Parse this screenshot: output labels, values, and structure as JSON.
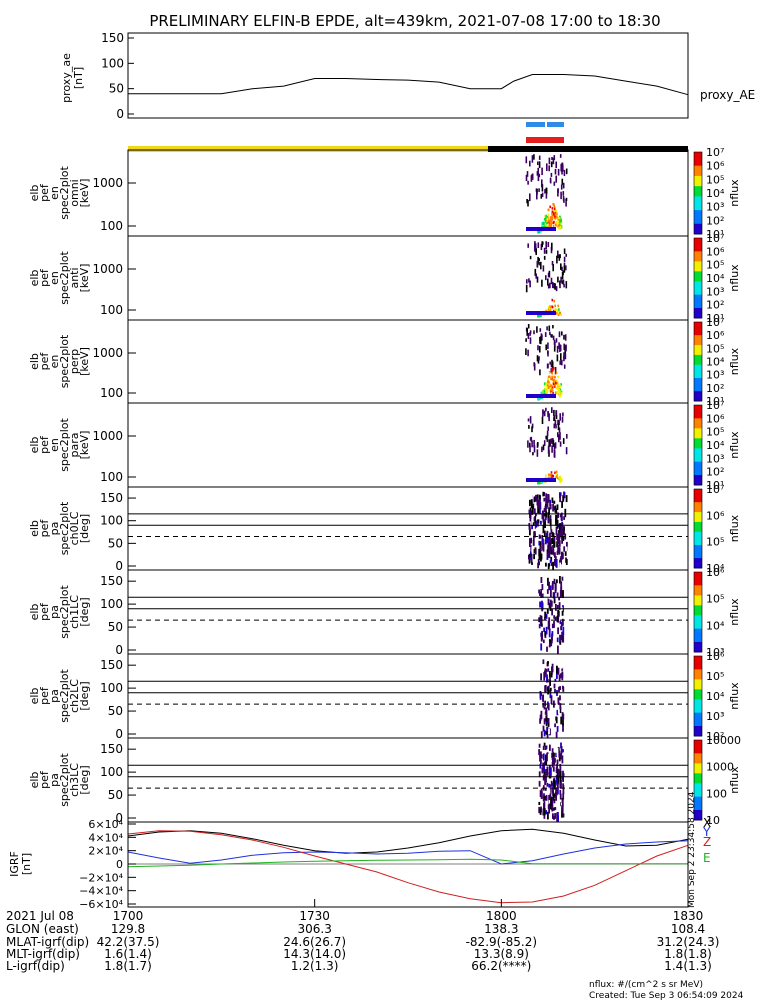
{
  "title": "PRELIMINARY ELFIN-B EPDE, alt=439km, 2021-07-08 17:00 to 18:30",
  "colors": {
    "sunlit_bar": "#f2d619",
    "shadow_bar": "#000000",
    "fast_mode_bar": "#2e8ce6",
    "science_zone_bar": "#e61e1e",
    "bgrf_x": "#000000",
    "bgrf_y": "#1e32dc",
    "bgrf_z": "#d21e1e",
    "bgrf_e": "#1eb41e"
  },
  "chart_data": [
    {
      "id": "proxy_ae",
      "type": "line",
      "ylabel": [
        "proxy_ae",
        "[nT]"
      ],
      "yticks": [
        "0",
        "50",
        "100",
        "150"
      ],
      "ylim": [
        0,
        150
      ],
      "xlim": [
        0,
        90
      ],
      "legend": "proxy_AE",
      "x": [
        0,
        5,
        10,
        15,
        20,
        25,
        30,
        35,
        40,
        45,
        50,
        55,
        60,
        62,
        65,
        70,
        75,
        80,
        85,
        90
      ],
      "y": [
        40,
        40,
        40,
        40,
        50,
        55,
        70,
        70,
        68,
        67,
        63,
        50,
        50,
        65,
        78,
        78,
        75,
        65,
        55,
        38
      ]
    },
    {
      "id": "en_omni",
      "type": "heatmap",
      "ylabel": [
        "elb",
        "pef",
        "en",
        "spec2plot",
        "omni",
        "[keV]"
      ],
      "yticks": [
        "100",
        "1000"
      ],
      "colorbar": {
        "label": "nflux",
        "ticks": [
          "10⁷",
          "10⁶",
          "10⁵",
          "10⁴",
          "10³",
          "10²",
          "10¹"
        ]
      }
    },
    {
      "id": "en_anti",
      "type": "heatmap",
      "ylabel": [
        "elb",
        "pef",
        "en",
        "spec2plot",
        "anti",
        "[keV]"
      ],
      "yticks": [
        "100",
        "1000"
      ],
      "colorbar": {
        "label": "nflux",
        "ticks": [
          "10⁷",
          "10⁶",
          "10⁵",
          "10⁴",
          "10³",
          "10²",
          "10¹"
        ]
      }
    },
    {
      "id": "en_perp",
      "type": "heatmap",
      "ylabel": [
        "elb",
        "pef",
        "en",
        "spec2plot",
        "perp",
        "[keV]"
      ],
      "yticks": [
        "100",
        "1000"
      ],
      "colorbar": {
        "label": "nflux",
        "ticks": [
          "10⁷",
          "10⁶",
          "10⁵",
          "10⁴",
          "10³",
          "10²",
          "10¹"
        ]
      }
    },
    {
      "id": "en_para",
      "type": "heatmap",
      "ylabel": [
        "elb",
        "pef",
        "en",
        "spec2plot",
        "para",
        "[keV]"
      ],
      "yticks": [
        "100",
        "1000"
      ],
      "colorbar": {
        "label": "nflux",
        "ticks": [
          "10⁷",
          "10⁶",
          "10⁵",
          "10⁴",
          "10³",
          "10²",
          "10¹"
        ]
      }
    },
    {
      "id": "pa_ch0",
      "type": "heatmap",
      "ylabel": [
        "elb",
        "pef",
        "pa",
        "spec2plot",
        "ch0LC",
        "[deg]"
      ],
      "yticks": [
        "0",
        "50",
        "100",
        "150"
      ],
      "colorbar": {
        "label": "nflux",
        "ticks": [
          "10⁷",
          "10⁶",
          "10⁵",
          "10⁴"
        ]
      }
    },
    {
      "id": "pa_ch1",
      "type": "heatmap",
      "ylabel": [
        "elb",
        "pef",
        "pa",
        "spec2plot",
        "ch1LC",
        "[deg]"
      ],
      "yticks": [
        "0",
        "50",
        "100",
        "150"
      ],
      "colorbar": {
        "label": "nflux",
        "ticks": [
          "10⁶",
          "10⁵",
          "10⁴",
          "10³"
        ]
      }
    },
    {
      "id": "pa_ch2",
      "type": "heatmap",
      "ylabel": [
        "elb",
        "pef",
        "pa",
        "spec2plot",
        "ch2LC",
        "[deg]"
      ],
      "yticks": [
        "0",
        "50",
        "100",
        "150"
      ],
      "colorbar": {
        "label": "nflux",
        "ticks": [
          "10⁶",
          "10⁵",
          "10⁴",
          "10³",
          "10²"
        ]
      }
    },
    {
      "id": "pa_ch3",
      "type": "heatmap",
      "ylabel": [
        "elb",
        "pef",
        "pa",
        "spec2plot",
        "ch3LC",
        "[deg]"
      ],
      "yticks": [
        "0",
        "50",
        "100",
        "150"
      ],
      "colorbar": {
        "label": "nflux",
        "ticks": [
          "10000",
          "1000",
          "100",
          "10"
        ]
      }
    },
    {
      "id": "bgrf",
      "type": "line",
      "ylabel": [
        "IGRF",
        "[nT]"
      ],
      "yticks": [
        "−6×10⁴",
        "−4×10⁴",
        "−2×10⁴",
        "0",
        "2×10⁴",
        "4×10⁴",
        "6×10⁴"
      ],
      "ylim": [
        -60000,
        60000
      ],
      "xlim": [
        0,
        90
      ],
      "legend": [
        "X",
        "Y",
        "Z",
        "E"
      ],
      "x": [
        0,
        5,
        10,
        15,
        20,
        25,
        30,
        35,
        40,
        45,
        50,
        55,
        60,
        65,
        70,
        75,
        80,
        85,
        90
      ],
      "series": [
        {
          "values": [
            42000,
            48000,
            50000,
            46000,
            38000,
            28000,
            20000,
            16000,
            18000,
            24000,
            32000,
            42000,
            50000,
            52000,
            46000,
            36000,
            27000,
            28000,
            37000
          ]
        },
        {
          "values": [
            18000,
            9000,
            1000,
            6000,
            13000,
            17000,
            18000,
            17000,
            15000,
            16000,
            19000,
            20000,
            0,
            5000,
            15000,
            24000,
            30000,
            33000,
            35000
          ]
        },
        {
          "values": [
            45000,
            50000,
            49000,
            44000,
            36000,
            25000,
            12000,
            0,
            -12000,
            -28000,
            -42000,
            -52000,
            -58000,
            -57000,
            -48000,
            -32000,
            -10000,
            12000,
            28000
          ]
        },
        {
          "values": [
            -4000,
            -3000,
            -2000,
            0,
            1500,
            3000,
            4000,
            5000,
            5500,
            6000,
            6500,
            7000,
            6000,
            500,
            500,
            500,
            500,
            500,
            500
          ]
        }
      ]
    }
  ],
  "xaxis": {
    "ticks": [
      "1700",
      "1730",
      "1800",
      "1830"
    ],
    "rows": [
      {
        "label": "2021 Jul 08",
        "values": [
          "",
          "",
          "",
          ""
        ]
      },
      {
        "label": "GLON (east)",
        "values": [
          "129.8",
          "306.3",
          "138.3",
          "108.4"
        ]
      },
      {
        "label": "MLAT-igrf(dip)",
        "values": [
          "42.2(37.5)",
          "24.6(26.7)",
          "-82.9(-85.2)",
          "31.2(24.3)"
        ]
      },
      {
        "label": "MLT-igrf(dip)",
        "values": [
          "1.6(1.4)",
          "14.3(14.0)",
          "13.3(8.9)",
          "1.8(1.8)"
        ]
      },
      {
        "label": "L-igrf(dip)",
        "values": [
          "1.8(1.7)",
          "1.2(1.3)",
          "66.2(****)",
          "1.4(1.3)"
        ]
      }
    ]
  },
  "footer": {
    "units": "nflux: #/(cm^2 s sr MeV)",
    "created": "Created: Tue Sep  3 06:54:09 2024",
    "stamp": "Mon Sep  2 23:34:58 2024"
  }
}
